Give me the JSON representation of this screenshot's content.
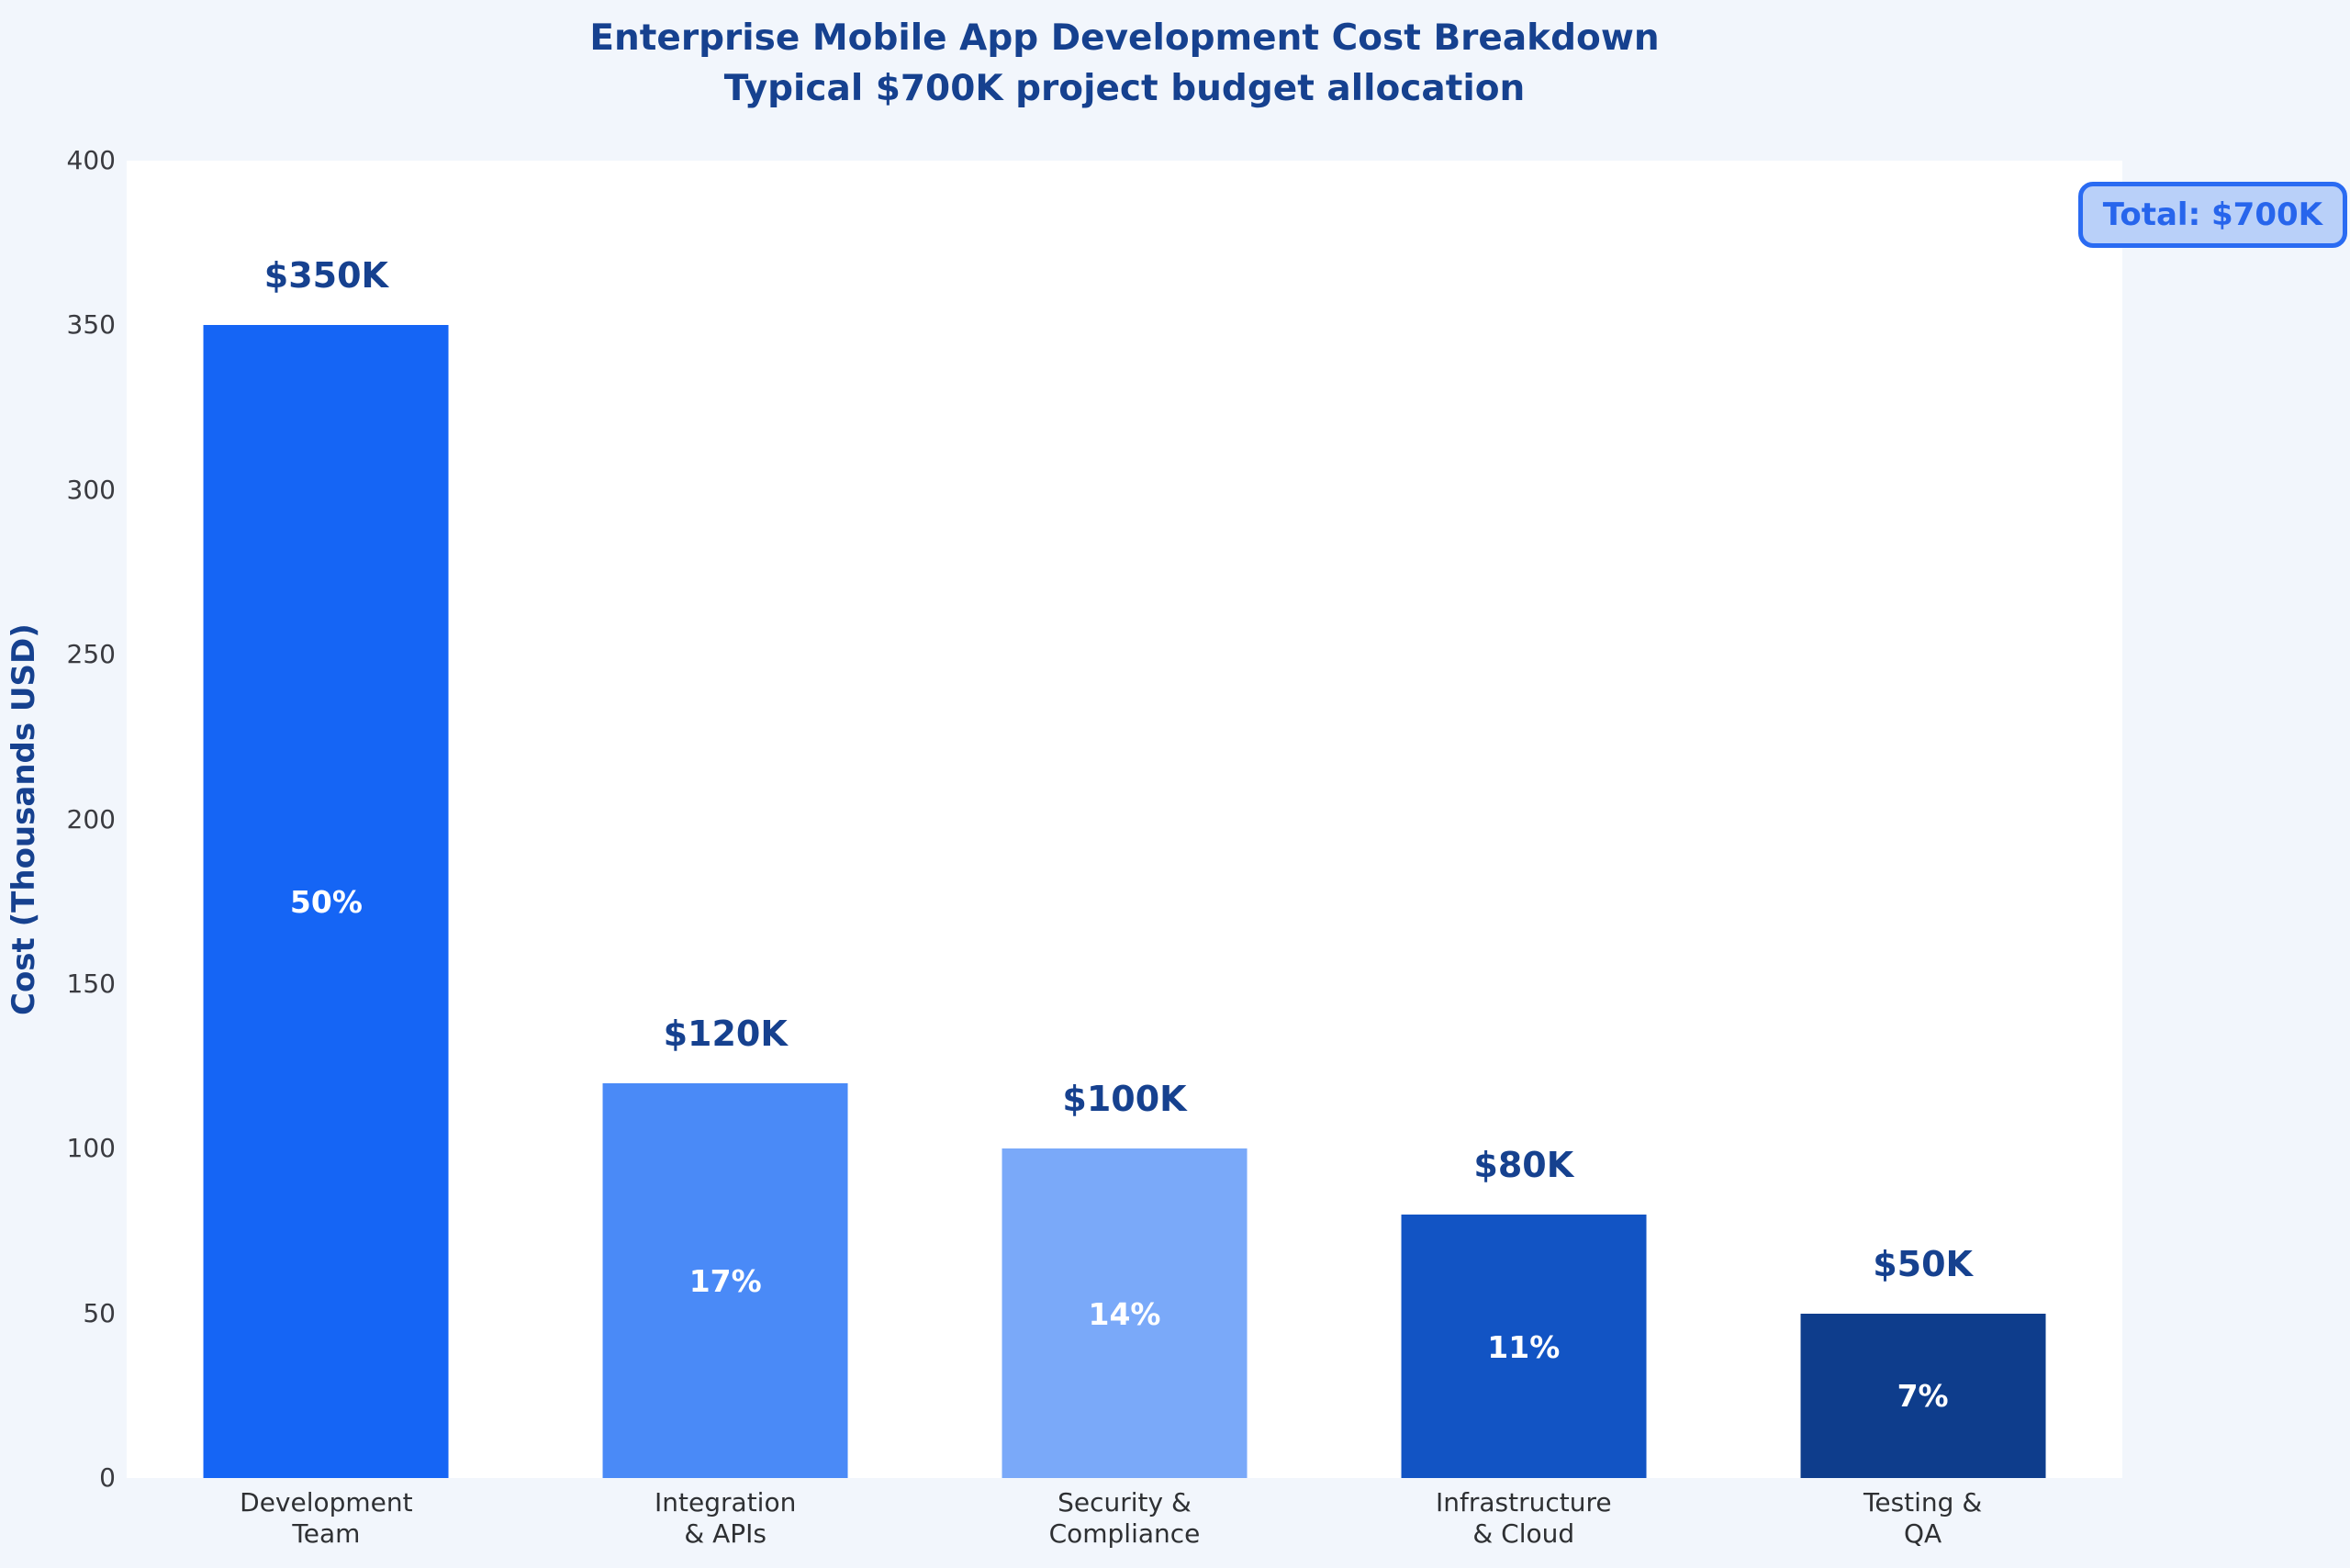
{
  "title": {
    "line1": "Enterprise Mobile App Development Cost Breakdown",
    "line2": "Typical $700K project budget allocation"
  },
  "y_axis": {
    "label": "Cost (Thousands USD)"
  },
  "badge": {
    "label": "Total: $700K"
  },
  "chart_data": {
    "type": "bar",
    "title": "Enterprise Mobile App Development Cost Breakdown",
    "subtitle": "Typical $700K project budget allocation",
    "categories": [
      "Development\nTeam",
      "Integration\n& APIs",
      "Security &\nCompliance",
      "Infrastructure\n& Cloud",
      "Testing &\nQA"
    ],
    "values": [
      350,
      120,
      100,
      80,
      50
    ],
    "value_labels": [
      "$350K",
      "$120K",
      "$100K",
      "$80K",
      "$50K"
    ],
    "pct_labels": [
      "50%",
      "17%",
      "14%",
      "11%",
      "7%"
    ],
    "bar_colors": [
      "#1565f5",
      "#4a8af7",
      "#7aa9f9",
      "#1254c4",
      "#0e3d8c"
    ],
    "xlabel": "",
    "ylabel": "Cost (Thousands USD)",
    "ylim": [
      0,
      400
    ],
    "yticks": [
      0,
      50,
      100,
      150,
      200,
      250,
      300,
      350,
      400
    ],
    "grid": false,
    "legend": "none",
    "annotation": "Total: $700K",
    "annotation_position": "top-right"
  },
  "colors": {
    "bg": "#f2f6fc",
    "plot_bg": "#ffffff",
    "navy": "#16418f",
    "tick": "#3a3b40",
    "xlabel": "#2e3033",
    "badge_bg": "#b9d0f9",
    "badge_border": "#2a6bf2",
    "badge_text": "#2765ec"
  }
}
